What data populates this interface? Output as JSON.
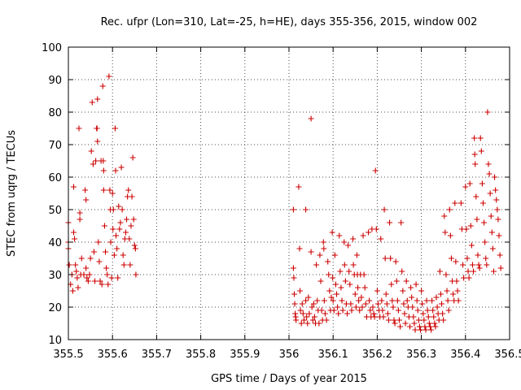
{
  "chart_data": {
    "type": "scatter",
    "title": "Rec. ufpr (Lon=310, Lat=-25, h=HE), days 355-356, 2015, window 002",
    "xlabel": "GPS time / Days of year 2015",
    "ylabel": "STEC from uqrg / TECUs",
    "xlim": [
      355.5,
      356.5
    ],
    "ylim": [
      10,
      100
    ],
    "xticks": [
      "355.5",
      "355.6",
      "355.7",
      "355.8",
      "355.9",
      "356",
      "356.1",
      "356.2",
      "356.3",
      "356.4",
      "356.5"
    ],
    "yticks": [
      "10",
      "20",
      "30",
      "40",
      "50",
      "60",
      "70",
      "80",
      "90",
      "100"
    ],
    "grid": true,
    "marker": "+",
    "color": "#cc0000",
    "points": [
      [
        355.5,
        46
      ],
      [
        355.5,
        40
      ],
      [
        355.5,
        38
      ],
      [
        355.502,
        33
      ],
      [
        355.505,
        27
      ],
      [
        355.508,
        30
      ],
      [
        355.51,
        25
      ],
      [
        355.512,
        57
      ],
      [
        355.512,
        43
      ],
      [
        355.514,
        41
      ],
      [
        355.516,
        33
      ],
      [
        355.518,
        31
      ],
      [
        355.52,
        29
      ],
      [
        355.522,
        26
      ],
      [
        355.524,
        75
      ],
      [
        355.526,
        49
      ],
      [
        355.526,
        47
      ],
      [
        355.528,
        30
      ],
      [
        355.53,
        35
      ],
      [
        355.535,
        30
      ],
      [
        355.538,
        56
      ],
      [
        355.54,
        53
      ],
      [
        355.54,
        32
      ],
      [
        355.542,
        29
      ],
      [
        355.545,
        28
      ],
      [
        355.548,
        30
      ],
      [
        355.55,
        35
      ],
      [
        355.552,
        68
      ],
      [
        355.554,
        83
      ],
      [
        355.556,
        64
      ],
      [
        355.558,
        37
      ],
      [
        355.56,
        28
      ],
      [
        355.562,
        65
      ],
      [
        355.564,
        75
      ],
      [
        355.565,
        75
      ],
      [
        355.566,
        84
      ],
      [
        355.566,
        71
      ],
      [
        355.568,
        40
      ],
      [
        355.57,
        34
      ],
      [
        355.572,
        28
      ],
      [
        355.574,
        65
      ],
      [
        355.576,
        27
      ],
      [
        355.578,
        88
      ],
      [
        355.579,
        65
      ],
      [
        355.58,
        56
      ],
      [
        355.58,
        62
      ],
      [
        355.582,
        45
      ],
      [
        355.584,
        37
      ],
      [
        355.586,
        32
      ],
      [
        355.588,
        30
      ],
      [
        355.59,
        27
      ],
      [
        355.592,
        91
      ],
      [
        355.594,
        56
      ],
      [
        355.595,
        50
      ],
      [
        355.596,
        40
      ],
      [
        355.598,
        29
      ],
      [
        355.6,
        55
      ],
      [
        355.601,
        44
      ],
      [
        355.602,
        50
      ],
      [
        355.604,
        36
      ],
      [
        355.606,
        75
      ],
      [
        355.607,
        62
      ],
      [
        355.608,
        42
      ],
      [
        355.61,
        38
      ],
      [
        355.612,
        29
      ],
      [
        355.614,
        51
      ],
      [
        355.616,
        44
      ],
      [
        355.618,
        46
      ],
      [
        355.62,
        63
      ],
      [
        355.622,
        50
      ],
      [
        355.624,
        36
      ],
      [
        355.626,
        33
      ],
      [
        355.628,
        41
      ],
      [
        355.63,
        43
      ],
      [
        355.632,
        47
      ],
      [
        355.634,
        54
      ],
      [
        355.636,
        56
      ],
      [
        355.638,
        41
      ],
      [
        355.64,
        33
      ],
      [
        355.642,
        45
      ],
      [
        355.644,
        54
      ],
      [
        355.646,
        66
      ],
      [
        355.648,
        47
      ],
      [
        355.65,
        39
      ],
      [
        355.652,
        38
      ],
      [
        355.653,
        30
      ],
      [
        356.01,
        50
      ],
      [
        356.01,
        32
      ],
      [
        356.011,
        29
      ],
      [
        356.012,
        24
      ],
      [
        356.013,
        21
      ],
      [
        356.014,
        18
      ],
      [
        356.015,
        17
      ],
      [
        356.016,
        16
      ],
      [
        356.022,
        57
      ],
      [
        356.024,
        38
      ],
      [
        356.025,
        25
      ],
      [
        356.026,
        19
      ],
      [
        356.028,
        15
      ],
      [
        356.03,
        21
      ],
      [
        356.032,
        18
      ],
      [
        356.034,
        16
      ],
      [
        356.038,
        50
      ],
      [
        356.038,
        22
      ],
      [
        356.04,
        17
      ],
      [
        356.042,
        15
      ],
      [
        356.044,
        23
      ],
      [
        356.046,
        18
      ],
      [
        356.05,
        78
      ],
      [
        356.05,
        37
      ],
      [
        356.052,
        20
      ],
      [
        356.054,
        16
      ],
      [
        356.056,
        21
      ],
      [
        356.058,
        17
      ],
      [
        356.06,
        15
      ],
      [
        356.062,
        33
      ],
      [
        356.064,
        22
      ],
      [
        356.066,
        19
      ],
      [
        356.068,
        15
      ],
      [
        356.07,
        36
      ],
      [
        356.072,
        28
      ],
      [
        356.074,
        19
      ],
      [
        356.076,
        16
      ],
      [
        356.078,
        40
      ],
      [
        356.079,
        38
      ],
      [
        356.08,
        22
      ],
      [
        356.082,
        18
      ],
      [
        356.085,
        16
      ],
      [
        356.088,
        34
      ],
      [
        356.09,
        30
      ],
      [
        356.092,
        25
      ],
      [
        356.094,
        19
      ],
      [
        356.096,
        23
      ],
      [
        356.098,
        43
      ],
      [
        356.099,
        29
      ],
      [
        356.1,
        22
      ],
      [
        356.102,
        19
      ],
      [
        356.104,
        36
      ],
      [
        356.106,
        27
      ],
      [
        356.108,
        24
      ],
      [
        356.11,
        20
      ],
      [
        356.112,
        18
      ],
      [
        356.114,
        42
      ],
      [
        356.116,
        31
      ],
      [
        356.118,
        26
      ],
      [
        356.12,
        22
      ],
      [
        356.122,
        19
      ],
      [
        356.125,
        40
      ],
      [
        356.126,
        33
      ],
      [
        356.128,
        28
      ],
      [
        356.13,
        21
      ],
      [
        356.132,
        18
      ],
      [
        356.134,
        39
      ],
      [
        356.136,
        31
      ],
      [
        356.138,
        27
      ],
      [
        356.14,
        21
      ],
      [
        356.142,
        19
      ],
      [
        356.145,
        41
      ],
      [
        356.146,
        33
      ],
      [
        356.148,
        30
      ],
      [
        356.15,
        24
      ],
      [
        356.152,
        20
      ],
      [
        356.154,
        36
      ],
      [
        356.155,
        30
      ],
      [
        356.156,
        26
      ],
      [
        356.158,
        22
      ],
      [
        356.16,
        19
      ],
      [
        356.162,
        30
      ],
      [
        356.164,
        23
      ],
      [
        356.166,
        20
      ],
      [
        356.168,
        42
      ],
      [
        356.17,
        30
      ],
      [
        356.172,
        26
      ],
      [
        356.174,
        21
      ],
      [
        356.176,
        17
      ],
      [
        356.18,
        43
      ],
      [
        356.182,
        22
      ],
      [
        356.184,
        19
      ],
      [
        356.186,
        17
      ],
      [
        356.188,
        44
      ],
      [
        356.19,
        20
      ],
      [
        356.192,
        18
      ],
      [
        356.194,
        17
      ],
      [
        356.196,
        62
      ],
      [
        356.198,
        44
      ],
      [
        356.2,
        25
      ],
      [
        356.202,
        21
      ],
      [
        356.204,
        19
      ],
      [
        356.206,
        17
      ],
      [
        356.208,
        41
      ],
      [
        356.21,
        22
      ],
      [
        356.212,
        19
      ],
      [
        356.214,
        17
      ],
      [
        356.216,
        50
      ],
      [
        356.218,
        35
      ],
      [
        356.22,
        24
      ],
      [
        356.222,
        21
      ],
      [
        356.224,
        18
      ],
      [
        356.226,
        16
      ],
      [
        356.228,
        46
      ],
      [
        356.23,
        35
      ],
      [
        356.232,
        27
      ],
      [
        356.234,
        22
      ],
      [
        356.236,
        20
      ],
      [
        356.238,
        16
      ],
      [
        356.24,
        15
      ],
      [
        356.242,
        34
      ],
      [
        356.244,
        28
      ],
      [
        356.246,
        22
      ],
      [
        356.248,
        19
      ],
      [
        356.25,
        16
      ],
      [
        356.252,
        14
      ],
      [
        356.254,
        46
      ],
      [
        356.256,
        31
      ],
      [
        356.258,
        25
      ],
      [
        356.26,
        21
      ],
      [
        356.262,
        18
      ],
      [
        356.264,
        15
      ],
      [
        356.266,
        28
      ],
      [
        356.268,
        22
      ],
      [
        356.27,
        20
      ],
      [
        356.272,
        17
      ],
      [
        356.274,
        14
      ],
      [
        356.276,
        26
      ],
      [
        356.278,
        23
      ],
      [
        356.28,
        20
      ],
      [
        356.282,
        17
      ],
      [
        356.284,
        15
      ],
      [
        356.286,
        13
      ],
      [
        356.288,
        27
      ],
      [
        356.29,
        22
      ],
      [
        356.292,
        19
      ],
      [
        356.294,
        16
      ],
      [
        356.296,
        14
      ],
      [
        356.298,
        13
      ],
      [
        356.3,
        25
      ],
      [
        356.302,
        21
      ],
      [
        356.304,
        18
      ],
      [
        356.306,
        16
      ],
      [
        356.308,
        14
      ],
      [
        356.31,
        13
      ],
      [
        356.312,
        22
      ],
      [
        356.314,
        19
      ],
      [
        356.316,
        17
      ],
      [
        356.318,
        15
      ],
      [
        356.32,
        14
      ],
      [
        356.322,
        13
      ],
      [
        356.324,
        22
      ],
      [
        356.326,
        19
      ],
      [
        356.328,
        17
      ],
      [
        356.33,
        15
      ],
      [
        356.332,
        14
      ],
      [
        356.334,
        23
      ],
      [
        356.336,
        20
      ],
      [
        356.338,
        18
      ],
      [
        356.34,
        16
      ],
      [
        356.342,
        31
      ],
      [
        356.344,
        24
      ],
      [
        356.346,
        21
      ],
      [
        356.348,
        18
      ],
      [
        356.35,
        16
      ],
      [
        356.352,
        48
      ],
      [
        356.354,
        43
      ],
      [
        356.356,
        30
      ],
      [
        356.358,
        25
      ],
      [
        356.36,
        22
      ],
      [
        356.362,
        19
      ],
      [
        356.364,
        50
      ],
      [
        356.366,
        42
      ],
      [
        356.368,
        35
      ],
      [
        356.37,
        28
      ],
      [
        356.372,
        24
      ],
      [
        356.374,
        22
      ],
      [
        356.376,
        52
      ],
      [
        356.378,
        34
      ],
      [
        356.38,
        28
      ],
      [
        356.382,
        25
      ],
      [
        356.384,
        22
      ],
      [
        356.39,
        52
      ],
      [
        356.392,
        44
      ],
      [
        356.394,
        33
      ],
      [
        356.396,
        29
      ],
      [
        356.4,
        57
      ],
      [
        356.402,
        44
      ],
      [
        356.404,
        35
      ],
      [
        356.406,
        31
      ],
      [
        356.408,
        29
      ],
      [
        356.41,
        58
      ],
      [
        356.412,
        45
      ],
      [
        356.414,
        39
      ],
      [
        356.416,
        33
      ],
      [
        356.418,
        31
      ],
      [
        356.42,
        72
      ],
      [
        356.421,
        67
      ],
      [
        356.422,
        64
      ],
      [
        356.424,
        54
      ],
      [
        356.426,
        47
      ],
      [
        356.428,
        36
      ],
      [
        356.43,
        33
      ],
      [
        356.432,
        32
      ],
      [
        356.434,
        72
      ],
      [
        356.436,
        68
      ],
      [
        356.438,
        58
      ],
      [
        356.44,
        52
      ],
      [
        356.442,
        46
      ],
      [
        356.444,
        40
      ],
      [
        356.446,
        35
      ],
      [
        356.448,
        33
      ],
      [
        356.45,
        80
      ],
      [
        356.452,
        64
      ],
      [
        356.454,
        61
      ],
      [
        356.456,
        55
      ],
      [
        356.458,
        48
      ],
      [
        356.46,
        43
      ],
      [
        356.462,
        38
      ],
      [
        356.464,
        31
      ],
      [
        356.466,
        60
      ],
      [
        356.468,
        56
      ],
      [
        356.47,
        53
      ],
      [
        356.472,
        50
      ],
      [
        356.474,
        47
      ],
      [
        356.476,
        42
      ],
      [
        356.478,
        36
      ],
      [
        356.48,
        32
      ]
    ]
  }
}
